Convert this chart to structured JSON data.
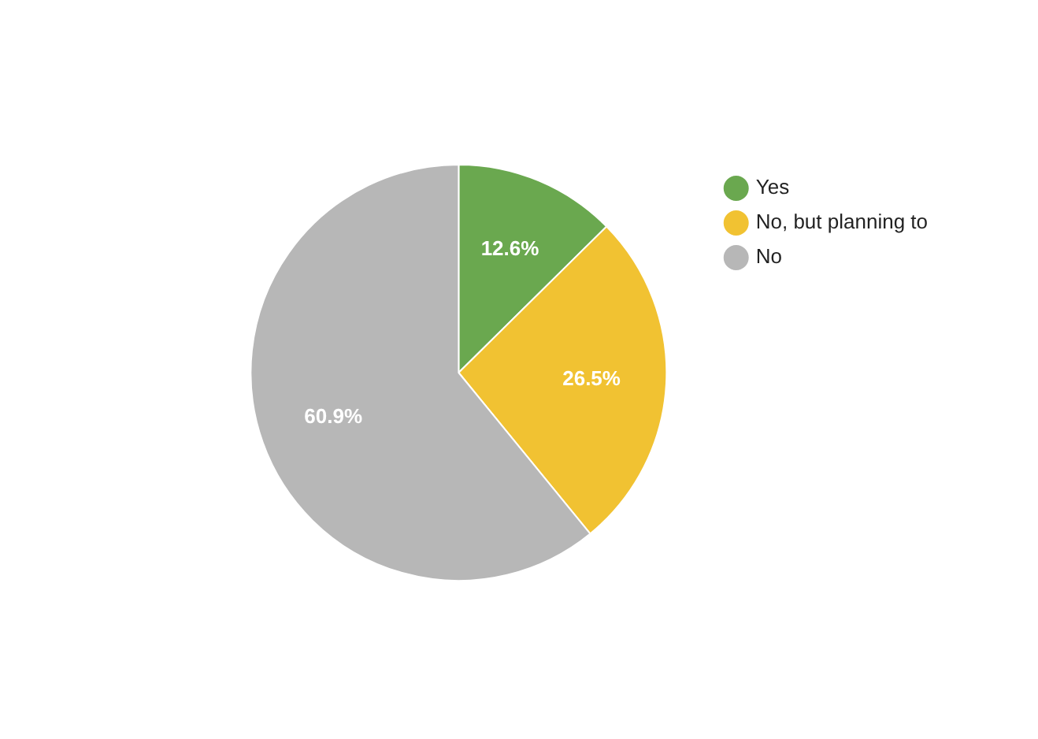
{
  "chart_data": {
    "type": "pie",
    "categories": [
      "Yes",
      "No, but planning to",
      "No"
    ],
    "values": [
      12.6,
      26.5,
      60.9
    ],
    "colors": [
      "#6aa84f",
      "#f1c232",
      "#b7b7b7"
    ],
    "value_labels": [
      "12.6%",
      "26.5%",
      "60.9%"
    ],
    "legend": "right"
  }
}
